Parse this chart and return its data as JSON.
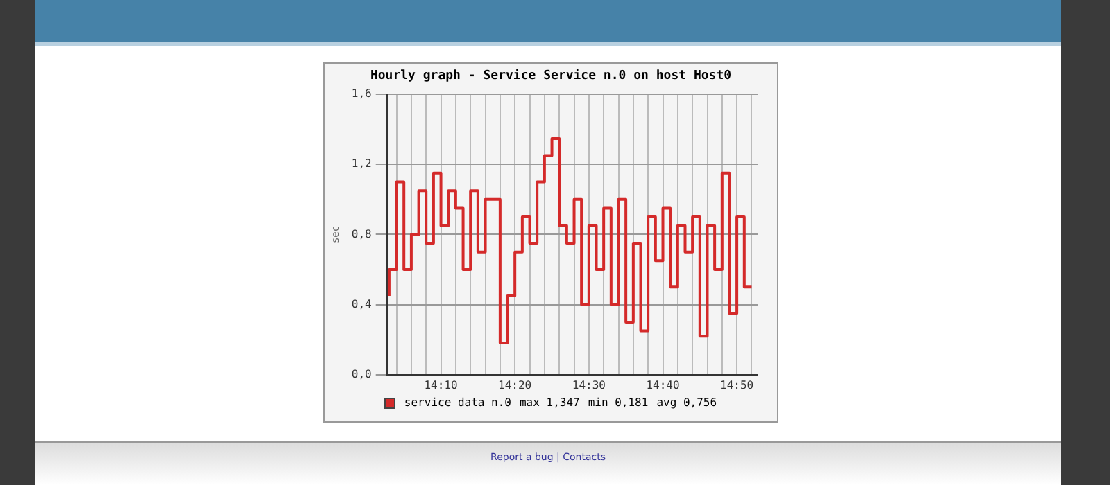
{
  "chart_data": {
    "type": "step",
    "title": "Hourly graph - Service Service n.0 on host Host0",
    "ylabel": "sec",
    "annotations": [
      "max 1,347",
      "min 0,181",
      "avg 0,756",
      "Report a bug | Contacts"
    ],
    "x": [
      14.05,
      14.0667,
      14.0833,
      14.1,
      14.1167,
      14.1333,
      14.15,
      14.1667,
      14.1833,
      14.2,
      14.2167,
      14.2333,
      14.25,
      14.2667,
      14.2833,
      14.3,
      14.3167,
      14.3333,
      14.35,
      14.3667,
      14.3833,
      14.4,
      14.4167,
      14.4333,
      14.45,
      14.4667,
      14.4833,
      14.5,
      14.5167,
      14.5333,
      14.55,
      14.5667,
      14.5833,
      14.6,
      14.6167,
      14.6333,
      14.65,
      14.6667,
      14.6833,
      14.7,
      14.7167,
      14.7333,
      14.75,
      14.7667,
      14.7833,
      14.8,
      14.8167,
      14.8333,
      14.85,
      14.8667
    ],
    "series": [
      {
        "name": "service data n.0",
        "color": "#d42a2a",
        "values": [
          0.45,
          0.6,
          1.1,
          0.6,
          0.8,
          1.05,
          0.75,
          1.15,
          0.85,
          1.05,
          0.95,
          0.6,
          1.05,
          0.7,
          1.0,
          1.0,
          0.181,
          0.45,
          0.7,
          0.9,
          0.75,
          1.1,
          1.25,
          1.347,
          0.85,
          0.75,
          1.0,
          0.4,
          0.85,
          0.6,
          0.95,
          0.4,
          1.0,
          0.3,
          0.75,
          0.25,
          0.9,
          0.65,
          0.95,
          0.5,
          0.85,
          0.7,
          0.9,
          0.22,
          0.85,
          0.6,
          1.15,
          0.35,
          0.9,
          0.5
        ]
      }
    ],
    "xlim": [
      14.045,
      14.88
    ],
    "ylim": [
      0,
      1.6
    ],
    "xticks": [
      {
        "value": 14.0667,
        "label": null
      },
      {
        "value": 14.1,
        "label": null
      },
      {
        "value": 14.1333,
        "label": null
      },
      {
        "value": 14.1667,
        "label": "14:10"
      },
      {
        "value": 14.2,
        "label": null
      },
      {
        "value": 14.2333,
        "label": null
      },
      {
        "value": 14.2667,
        "label": null
      },
      {
        "value": 14.3,
        "label": null
      },
      {
        "value": 14.3333,
        "label": "14:20"
      },
      {
        "value": 14.3667,
        "label": null
      },
      {
        "value": 14.4,
        "label": null
      },
      {
        "value": 14.4333,
        "label": null
      },
      {
        "value": 14.4667,
        "label": null
      },
      {
        "value": 14.5,
        "label": "14:30"
      },
      {
        "value": 14.5333,
        "label": null
      },
      {
        "value": 14.5667,
        "label": null
      },
      {
        "value": 14.6,
        "label": null
      },
      {
        "value": 14.6333,
        "label": null
      },
      {
        "value": 14.6667,
        "label": "14:40"
      },
      {
        "value": 14.7,
        "label": null
      },
      {
        "value": 14.7333,
        "label": null
      },
      {
        "value": 14.7667,
        "label": null
      },
      {
        "value": 14.8,
        "label": null
      },
      {
        "value": 14.8333,
        "label": "14:50"
      },
      {
        "value": 14.8667,
        "label": null
      }
    ],
    "yticks": [
      {
        "value": 0,
        "label": "0,0"
      },
      {
        "value": 0.4,
        "label": "0,4"
      },
      {
        "value": 0.8,
        "label": "0,8"
      },
      {
        "value": 1.2,
        "label": "1,2"
      },
      {
        "value": 1.6,
        "label": "1,6"
      }
    ],
    "grid": true,
    "legend": "bottom",
    "marker": "none",
    "line_style": "solid"
  }
}
